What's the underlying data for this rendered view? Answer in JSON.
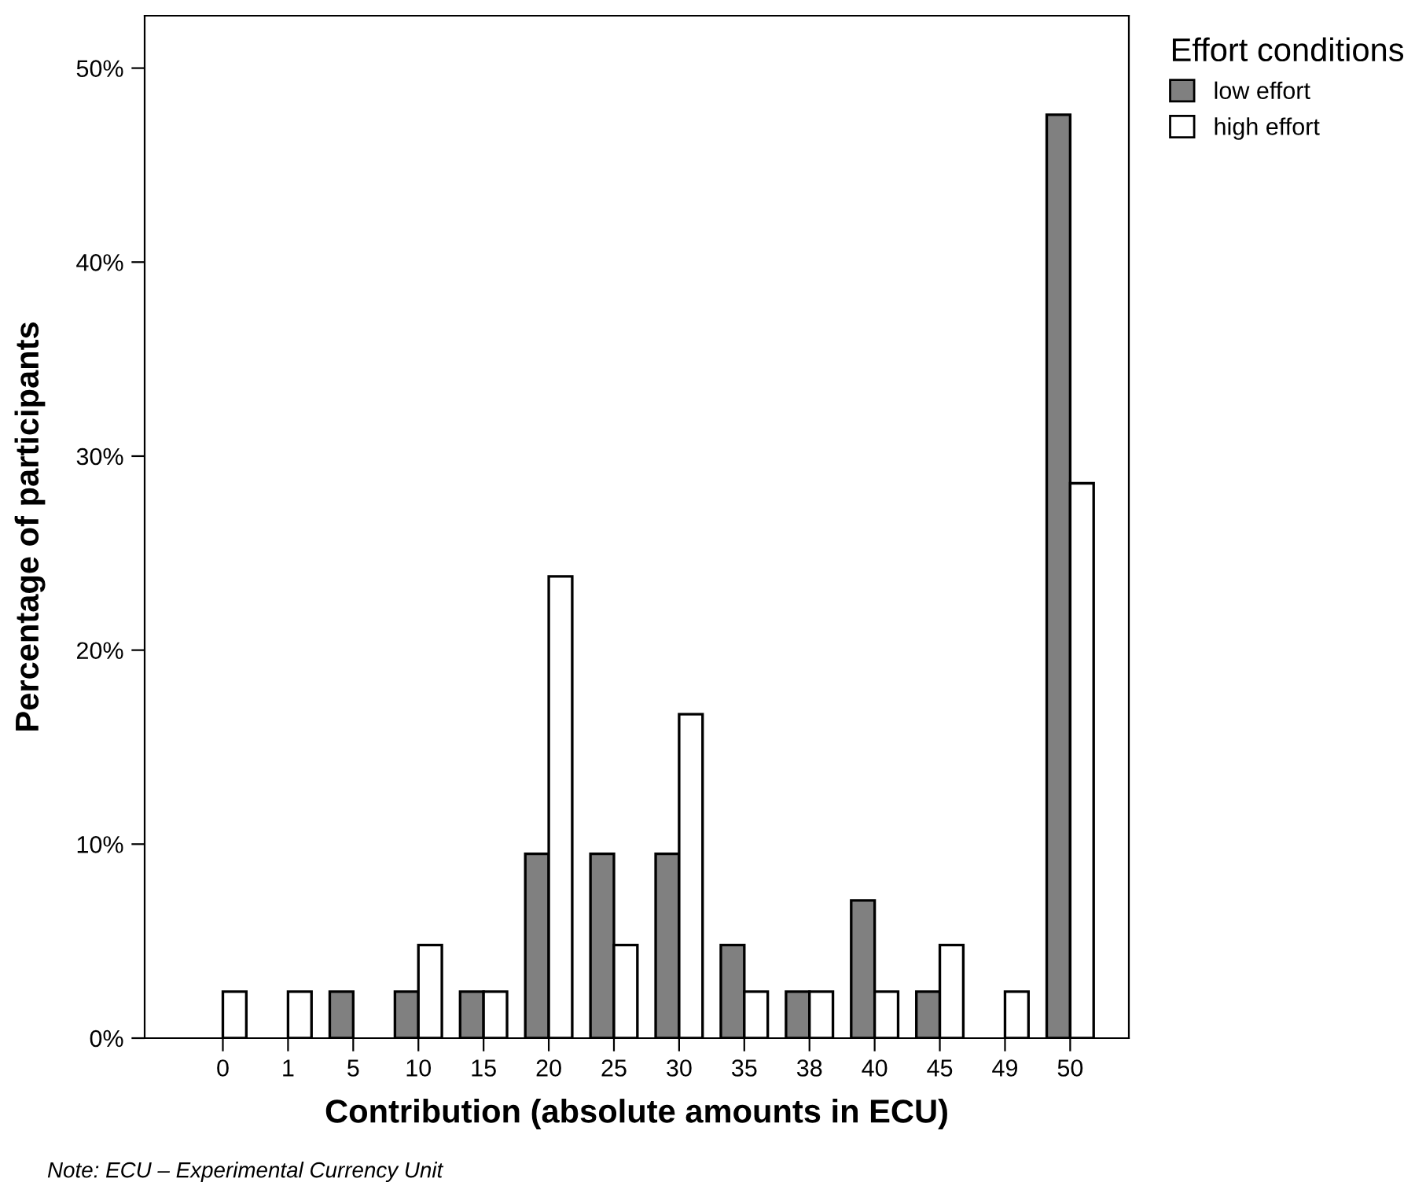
{
  "chart_data": {
    "type": "bar",
    "xlabel": "Contribution (absolute amounts in ECU)",
    "ylabel": "Percentage of participants",
    "legend_title": "Effort conditions",
    "categories": [
      "0",
      "1",
      "5",
      "10",
      "15",
      "20",
      "25",
      "30",
      "35",
      "38",
      "40",
      "45",
      "49",
      "50"
    ],
    "series": [
      {
        "name": "low effort",
        "color": "#808080",
        "values": [
          0,
          0,
          2.4,
          2.4,
          2.4,
          9.5,
          9.5,
          9.5,
          4.8,
          2.4,
          7.1,
          2.4,
          0,
          47.6
        ]
      },
      {
        "name": "high effort",
        "color": "#ffffff",
        "values": [
          2.4,
          2.4,
          0,
          4.8,
          2.4,
          23.8,
          4.8,
          16.7,
          2.4,
          2.4,
          2.4,
          4.8,
          2.4,
          28.6
        ]
      }
    ],
    "ylim": [
      0,
      52.7
    ],
    "yticks": [
      {
        "value": 0,
        "label": "0%"
      },
      {
        "value": 10,
        "label": "10%"
      },
      {
        "value": 20,
        "label": "20%"
      },
      {
        "value": 30,
        "label": "30%"
      },
      {
        "value": 40,
        "label": "40%"
      },
      {
        "value": 50,
        "label": "50%"
      }
    ],
    "grid": false,
    "legend": "top right",
    "annotations": [
      "Note: ECU – Experimental Currency Unit"
    ]
  }
}
